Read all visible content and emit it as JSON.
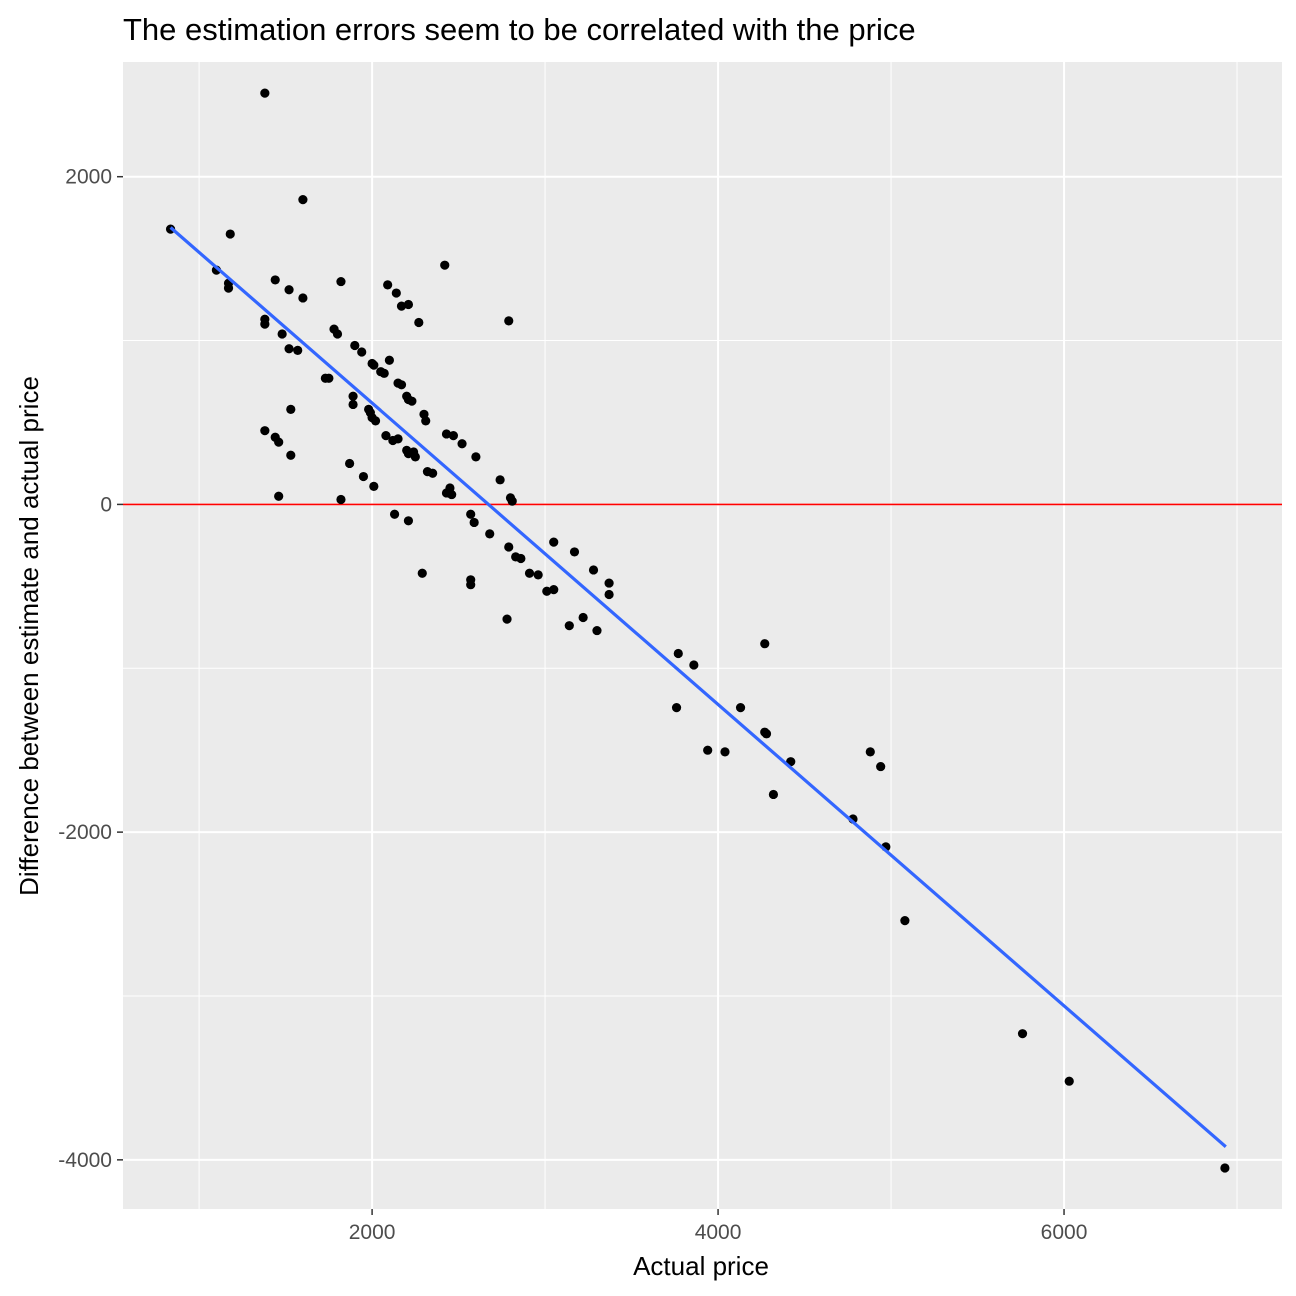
{
  "chart_data": {
    "type": "scatter",
    "title": "The estimation errors seem to be correlated with the price",
    "xlabel": "Actual price",
    "ylabel": "Difference between estimate and actual price",
    "xlim": [
      560,
      7260
    ],
    "ylim": [
      -4300,
      2700
    ],
    "x_major_ticks": [
      2000,
      4000,
      6000
    ],
    "x_minor_ticks": [
      1000,
      3000,
      5000,
      7000
    ],
    "y_major_ticks": [
      -4000,
      -2000,
      0,
      2000
    ],
    "y_minor_ticks": [
      -3000,
      -1000,
      1000
    ],
    "x_tick_labels": [
      "2000",
      "4000",
      "6000"
    ],
    "y_tick_labels": [
      "-4000",
      "-2000",
      "0",
      "2000"
    ],
    "grid": true,
    "reference_line": {
      "y": 0,
      "color": "#ff0000"
    },
    "trend_line": {
      "x": [
        835,
        6935
      ],
      "y": [
        1690,
        -3920
      ],
      "color": "#3366ff"
    },
    "colors": {
      "panel": "#ebebeb",
      "grid": "#ffffff",
      "point": "#000000"
    },
    "points": [
      {
        "x": 1380,
        "y": 2510
      },
      {
        "x": 1600,
        "y": 1860
      },
      {
        "x": 2420,
        "y": 1460
      },
      {
        "x": 835,
        "y": 1680
      },
      {
        "x": 1180,
        "y": 1650
      },
      {
        "x": 1100,
        "y": 1430
      },
      {
        "x": 1170,
        "y": 1350
      },
      {
        "x": 1170,
        "y": 1320
      },
      {
        "x": 1440,
        "y": 1370
      },
      {
        "x": 1520,
        "y": 1310
      },
      {
        "x": 1600,
        "y": 1260
      },
      {
        "x": 1820,
        "y": 1360
      },
      {
        "x": 2090,
        "y": 1340
      },
      {
        "x": 2140,
        "y": 1290
      },
      {
        "x": 2170,
        "y": 1210
      },
      {
        "x": 2210,
        "y": 1220
      },
      {
        "x": 2270,
        "y": 1110
      },
      {
        "x": 2790,
        "y": 1120
      },
      {
        "x": 1380,
        "y": 1130
      },
      {
        "x": 1380,
        "y": 1100
      },
      {
        "x": 1480,
        "y": 1040
      },
      {
        "x": 1520,
        "y": 950
      },
      {
        "x": 1570,
        "y": 940
      },
      {
        "x": 1780,
        "y": 1070
      },
      {
        "x": 1800,
        "y": 1040
      },
      {
        "x": 1730,
        "y": 770
      },
      {
        "x": 1750,
        "y": 770
      },
      {
        "x": 1900,
        "y": 970
      },
      {
        "x": 1940,
        "y": 930
      },
      {
        "x": 2000,
        "y": 860
      },
      {
        "x": 2010,
        "y": 850
      },
      {
        "x": 2050,
        "y": 810
      },
      {
        "x": 2070,
        "y": 800
      },
      {
        "x": 2100,
        "y": 880
      },
      {
        "x": 2150,
        "y": 740
      },
      {
        "x": 2170,
        "y": 730
      },
      {
        "x": 2200,
        "y": 660
      },
      {
        "x": 2210,
        "y": 640
      },
      {
        "x": 2230,
        "y": 630
      },
      {
        "x": 1890,
        "y": 660
      },
      {
        "x": 1890,
        "y": 610
      },
      {
        "x": 1980,
        "y": 580
      },
      {
        "x": 1990,
        "y": 560
      },
      {
        "x": 2000,
        "y": 530
      },
      {
        "x": 2020,
        "y": 510
      },
      {
        "x": 2080,
        "y": 420
      },
      {
        "x": 2120,
        "y": 390
      },
      {
        "x": 2150,
        "y": 400
      },
      {
        "x": 2200,
        "y": 330
      },
      {
        "x": 2210,
        "y": 310
      },
      {
        "x": 2240,
        "y": 320
      },
      {
        "x": 2250,
        "y": 290
      },
      {
        "x": 2300,
        "y": 550
      },
      {
        "x": 2310,
        "y": 510
      },
      {
        "x": 1530,
        "y": 580
      },
      {
        "x": 1380,
        "y": 450
      },
      {
        "x": 1440,
        "y": 410
      },
      {
        "x": 1460,
        "y": 380
      },
      {
        "x": 1530,
        "y": 300
      },
      {
        "x": 1870,
        "y": 250
      },
      {
        "x": 1950,
        "y": 170
      },
      {
        "x": 2010,
        "y": 110
      },
      {
        "x": 1460,
        "y": 50
      },
      {
        "x": 1820,
        "y": 30
      },
      {
        "x": 2320,
        "y": 200
      },
      {
        "x": 2350,
        "y": 190
      },
      {
        "x": 2430,
        "y": 430
      },
      {
        "x": 2470,
        "y": 420
      },
      {
        "x": 2520,
        "y": 370
      },
      {
        "x": 2600,
        "y": 290
      },
      {
        "x": 2430,
        "y": 70
      },
      {
        "x": 2450,
        "y": 100
      },
      {
        "x": 2460,
        "y": 60
      },
      {
        "x": 2740,
        "y": 150
      },
      {
        "x": 2800,
        "y": 40
      },
      {
        "x": 2810,
        "y": 20
      },
      {
        "x": 2130,
        "y": -60
      },
      {
        "x": 2210,
        "y": -100
      },
      {
        "x": 2570,
        "y": -60
      },
      {
        "x": 2590,
        "y": -110
      },
      {
        "x": 2680,
        "y": -180
      },
      {
        "x": 2790,
        "y": -260
      },
      {
        "x": 2830,
        "y": -320
      },
      {
        "x": 2860,
        "y": -330
      },
      {
        "x": 3050,
        "y": -230
      },
      {
        "x": 3170,
        "y": -290
      },
      {
        "x": 3280,
        "y": -400
      },
      {
        "x": 2290,
        "y": -420
      },
      {
        "x": 2570,
        "y": -460
      },
      {
        "x": 2570,
        "y": -490
      },
      {
        "x": 2910,
        "y": -420
      },
      {
        "x": 2960,
        "y": -430
      },
      {
        "x": 3010,
        "y": -530
      },
      {
        "x": 3050,
        "y": -520
      },
      {
        "x": 3370,
        "y": -480
      },
      {
        "x": 3370,
        "y": -550
      },
      {
        "x": 2780,
        "y": -700
      },
      {
        "x": 3140,
        "y": -740
      },
      {
        "x": 3220,
        "y": -690
      },
      {
        "x": 3300,
        "y": -770
      },
      {
        "x": 3770,
        "y": -910
      },
      {
        "x": 3860,
        "y": -980
      },
      {
        "x": 4270,
        "y": -850
      },
      {
        "x": 3760,
        "y": -1240
      },
      {
        "x": 4130,
        "y": -1240
      },
      {
        "x": 4270,
        "y": -1390
      },
      {
        "x": 4280,
        "y": -1400
      },
      {
        "x": 3940,
        "y": -1500
      },
      {
        "x": 4040,
        "y": -1510
      },
      {
        "x": 4420,
        "y": -1570
      },
      {
        "x": 4320,
        "y": -1770
      },
      {
        "x": 4880,
        "y": -1510
      },
      {
        "x": 4940,
        "y": -1600
      },
      {
        "x": 4780,
        "y": -1920
      },
      {
        "x": 4970,
        "y": -2090
      },
      {
        "x": 5080,
        "y": -2540
      },
      {
        "x": 5760,
        "y": -3230
      },
      {
        "x": 6030,
        "y": -3520
      },
      {
        "x": 6930,
        "y": -4050
      }
    ]
  }
}
